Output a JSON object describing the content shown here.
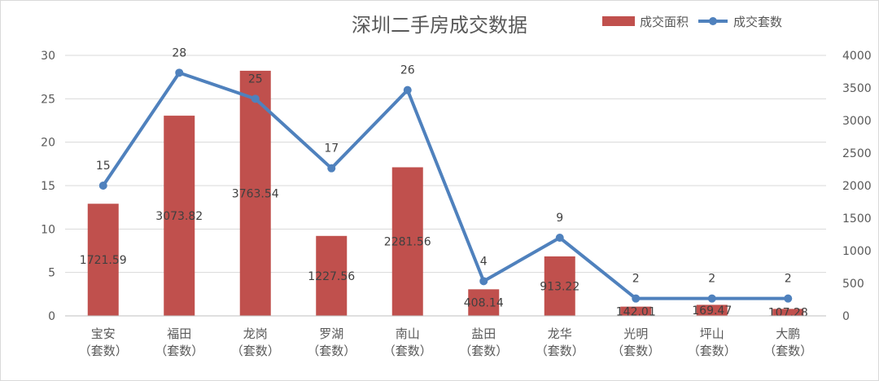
{
  "chart_data": {
    "type": "bar",
    "title": "深圳二手房成交数据",
    "categories": [
      "宝安",
      "福田",
      "龙岗",
      "罗湖",
      "南山",
      "盐田",
      "龙华",
      "光明",
      "坪山",
      "大鹏"
    ],
    "category_sublabel": "（套数）",
    "series": [
      {
        "name": "成交面积",
        "type": "bar",
        "axis": "right",
        "color": "#c0504d",
        "values": [
          1721.59,
          3073.82,
          3763.54,
          1227.56,
          2281.56,
          408.14,
          913.22,
          142.01,
          169.47,
          107.28
        ],
        "value_labels": [
          "1721.59",
          "3073.82",
          "3763.54",
          "1227.56",
          "2281.56",
          "408.14",
          "913.22",
          "142.01",
          "169.47",
          "107.28"
        ]
      },
      {
        "name": "成交套数",
        "type": "line",
        "axis": "left",
        "color": "#4f81bd",
        "values": [
          15,
          28,
          25,
          17,
          26,
          4,
          9,
          2,
          2,
          2
        ],
        "value_labels": [
          "15",
          "28",
          "25",
          "17",
          "26",
          "4",
          "9",
          "2",
          "2",
          "2"
        ]
      }
    ],
    "y_left": {
      "min": 0,
      "max": 30,
      "ticks": [
        "0",
        "5",
        "10",
        "15",
        "20",
        "25",
        "30"
      ]
    },
    "y_right": {
      "min": 0,
      "max": 4000,
      "ticks": [
        "0",
        "500",
        "1000",
        "1500",
        "2000",
        "2500",
        "3000",
        "3500",
        "4000"
      ]
    },
    "grid": true,
    "legend_position": "top-right"
  }
}
